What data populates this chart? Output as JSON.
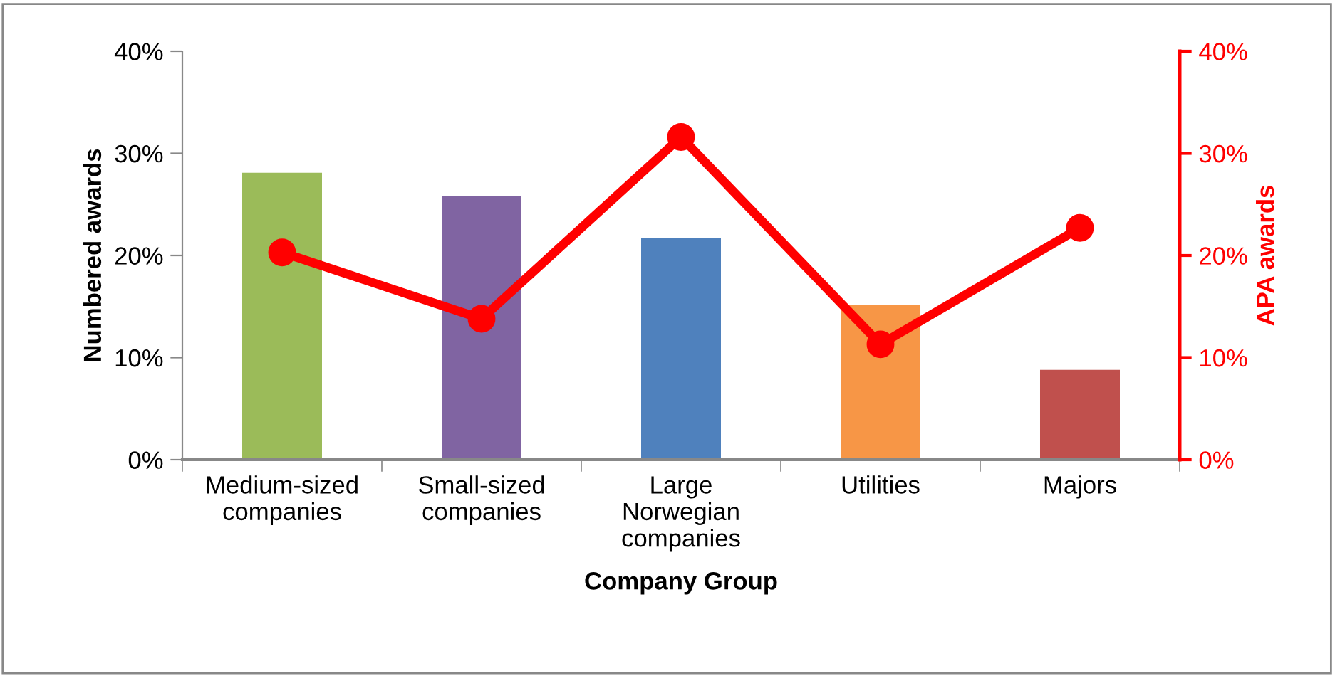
{
  "chart_data": {
    "type": "bar",
    "xlabel": "Company Group",
    "ylabel": "Numbered awards",
    "y2label": "APA awards",
    "categories": [
      "Medium-sized\ncompanies",
      "Small-sized\ncompanies",
      "Large\nNorwegian\ncompanies",
      "Utilities",
      "Majors"
    ],
    "series": [
      {
        "colors": [
          "#9bbb59",
          "#8064a2",
          "#4f81bd",
          "#f79646",
          "#c0504d"
        ],
        "values": [
          28.1,
          25.8,
          21.7,
          15.2,
          8.8
        ]
      },
      {
        "type": "line",
        "axis": "y2",
        "color": "#ff0000",
        "values": [
          20.3,
          13.8,
          31.6,
          11.3,
          22.7
        ]
      }
    ],
    "ylim": [
      0,
      40
    ],
    "yticks": [
      {
        "value": 0,
        "label": "0%"
      },
      {
        "value": 10,
        "label": "10%"
      },
      {
        "value": 20,
        "label": "20%"
      },
      {
        "value": 30,
        "label": "30%"
      },
      {
        "value": 40,
        "label": "40%"
      }
    ],
    "y2lim": [
      0,
      40
    ],
    "y2ticks": [
      {
        "value": 0,
        "label": "0%"
      },
      {
        "value": 10,
        "label": "10%"
      },
      {
        "value": 20,
        "label": "20%"
      },
      {
        "value": 30,
        "label": "30%"
      },
      {
        "value": 40,
        "label": "40%"
      }
    ],
    "marker": "circle",
    "line_style": "solid",
    "grid": false,
    "legend": false
  }
}
